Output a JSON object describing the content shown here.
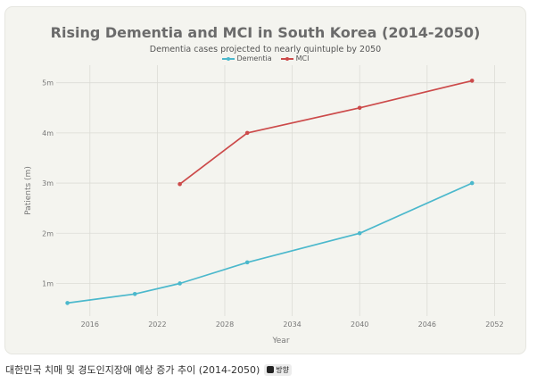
{
  "chart_data": {
    "type": "line",
    "title": "Rising Dementia and MCI in South Korea (2014-2050)",
    "subtitle": "Dementia cases projected to nearly quintuple by 2050",
    "xlabel": "Year",
    "ylabel": "Patients (m)",
    "xlim": [
      2013,
      2053
    ],
    "ylim": [
      0.35,
      5.35
    ],
    "x_ticks": [
      2016,
      2022,
      2028,
      2034,
      2040,
      2046,
      2052
    ],
    "y_ticks": [
      1,
      2,
      3,
      4,
      5
    ],
    "y_tick_labels": [
      "1m",
      "2m",
      "3m",
      "4m",
      "5m"
    ],
    "grid": true,
    "legend": "top-center",
    "series": [
      {
        "name": "Dementia",
        "color": "#4bb8cc",
        "x": [
          2014,
          2020,
          2024,
          2030,
          2040,
          2050
        ],
        "y": [
          0.61,
          0.79,
          1.0,
          1.42,
          2.0,
          3.0
        ]
      },
      {
        "name": "MCI",
        "color": "#cc4a4a",
        "x": [
          2024,
          2030,
          2040,
          2050
        ],
        "y": [
          2.98,
          4.0,
          4.5,
          5.04
        ]
      }
    ]
  },
  "caption": {
    "text": "대한민국 치매 및 경도인지장애 예상 증가 추이 (2014-2050)",
    "badge": "방향"
  },
  "colors": {
    "card_background": "#f4f4ef",
    "grid": "#dcdcd6",
    "axis_text": "#777777"
  }
}
